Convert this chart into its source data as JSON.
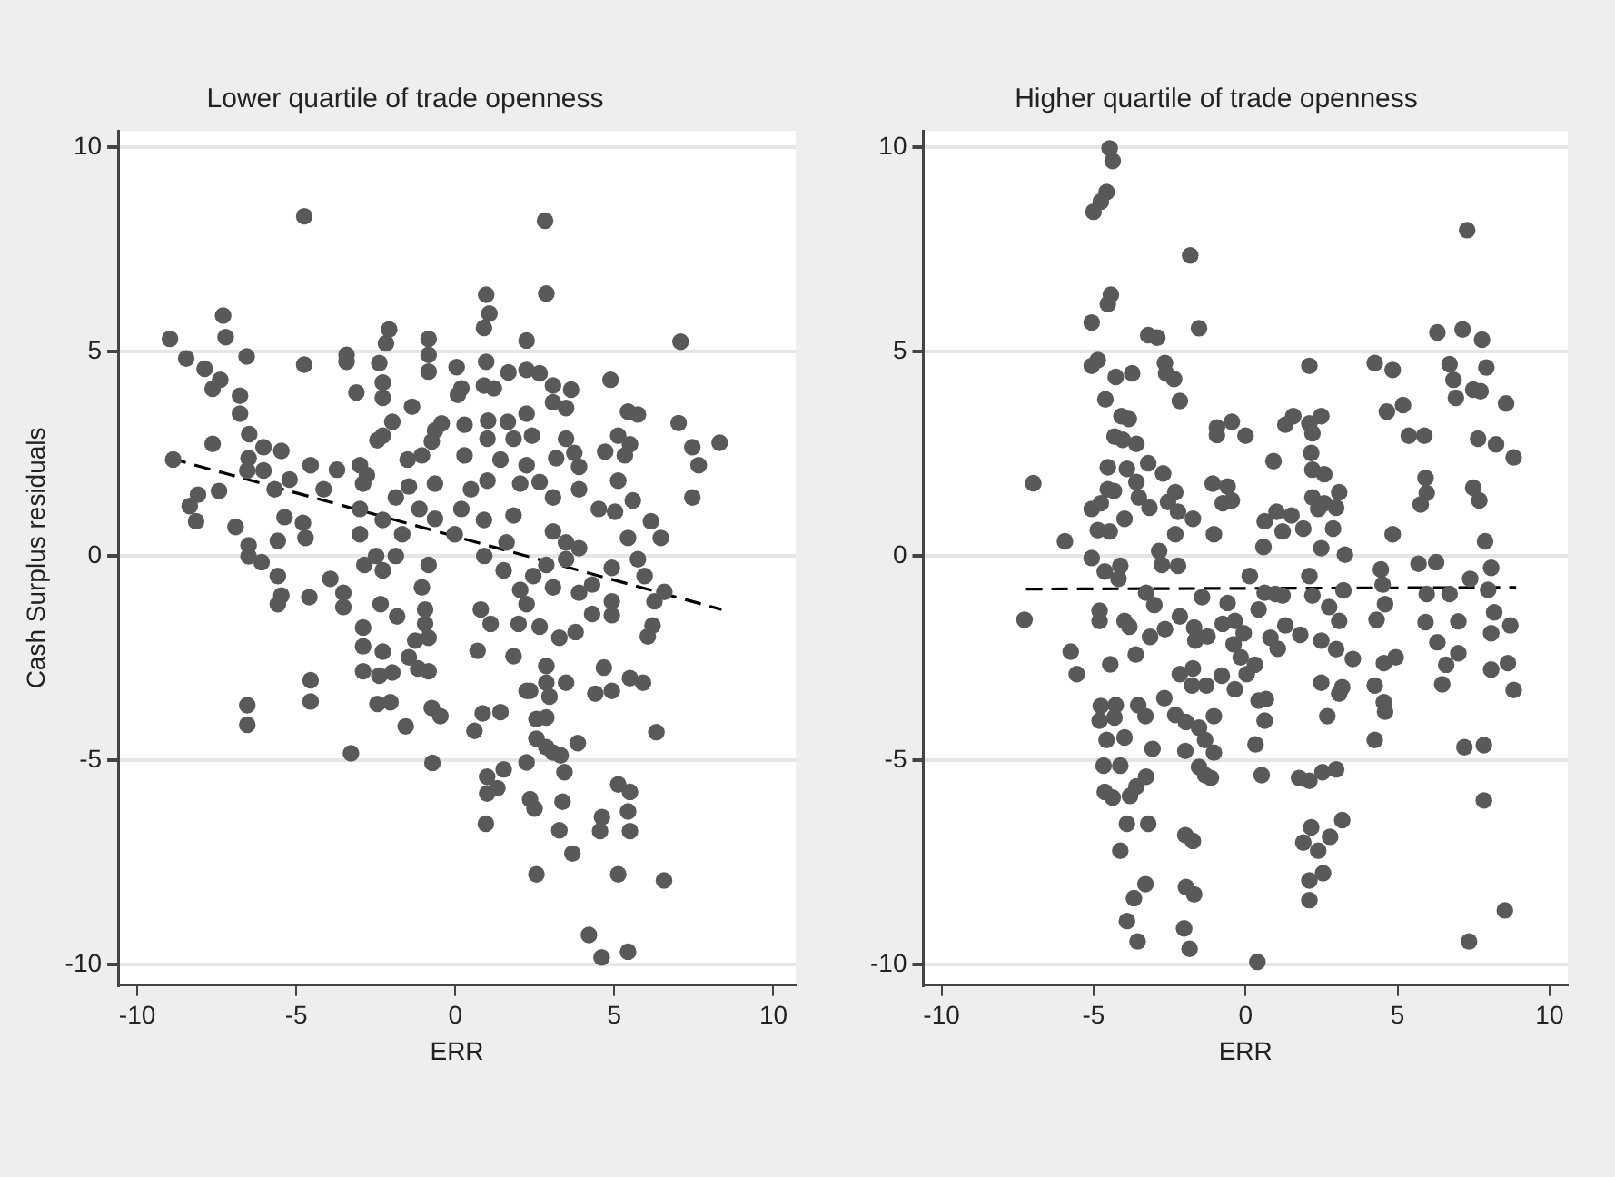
{
  "chart_data": [
    {
      "type": "scatter",
      "title": "Lower quartile of trade openness",
      "xlabel": "ERR",
      "ylabel": "Cash Surplus residuals",
      "xlim": [
        -10.6,
        10.7
      ],
      "ylim": [
        -10.5,
        10.4
      ],
      "xticks": [
        -10,
        -5,
        0,
        5,
        10
      ],
      "yticks": [
        -10,
        -5,
        0,
        5,
        10
      ],
      "grid": "y",
      "series": [
        {
          "type": "scatter",
          "color": "#595959",
          "marker": "circle",
          "x": [
            -4.75,
            2.82,
            0.97,
            2.86,
            1.07,
            0.9,
            -7.3,
            -8.97,
            -7.22,
            7.08,
            2.24,
            -2.08,
            -2.18,
            -0.84,
            -8.46,
            -7.88,
            -6.56,
            -4.75,
            -3.42,
            -3.42,
            -2.39,
            -0.84,
            -0.84,
            0.04,
            0.97,
            1.67,
            2.24,
            2.65,
            4.88,
            -7.39,
            -7.63,
            -6.77,
            -6.77,
            -3.11,
            -2.28,
            -2.28,
            -1.36,
            0.08,
            0.19,
            0.9,
            1.21,
            3.07,
            3.64,
            3.07,
            3.48,
            2.24,
            1.03,
            1.65,
            0.29,
            -0.43,
            -1.98,
            5.43,
            5.74,
            7.02,
            -6.48,
            -7.63,
            -6.03,
            -5.47,
            -2.45,
            -2.28,
            -0.64,
            -0.74,
            1.01,
            1.83,
            2.41,
            3.48,
            3.74,
            4.71,
            5.12,
            5.49,
            8.31,
            7.45,
            -8.87,
            -6.5,
            -6.54,
            -6.03,
            -4.55,
            -3.72,
            -3.0,
            -2.78,
            -1.5,
            -1.05,
            0.29,
            1.42,
            2.24,
            3.17,
            3.89,
            5.33,
            7.65,
            -8.09,
            -7.43,
            -8.35,
            -5.68,
            -5.21,
            -4.14,
            -2.9,
            -1.87,
            -1.46,
            -0.64,
            0.49,
            1.01,
            2.04,
            2.65,
            3.07,
            3.89,
            4.51,
            5.12,
            5.58,
            7.45,
            -8.15,
            -6.91,
            -5.37,
            -4.79,
            -4.71,
            -5.58,
            -6.5,
            -3.0,
            -2.28,
            -1.13,
            -0.64,
            0.19,
            0.9,
            1.83,
            3.07,
            3.48,
            3.89,
            5.02,
            5.43,
            6.15,
            6.46,
            -3.0,
            -1.67,
            -0.02,
            1.61,
            -6.5,
            -6.09,
            -5.58,
            -5.47,
            -5.58,
            -4.59,
            -3.93,
            -3.52,
            -3.52,
            -2.86,
            -2.28,
            -2.49,
            -1.87,
            -0.84,
            -1.05,
            -2.35,
            -1.83,
            -0.95,
            -2.9,
            -2.9,
            -2.28,
            -0.95,
            -1.26,
            -0.84,
            -1.46,
            -2.9,
            -2.39,
            -1.98,
            -1.17,
            -0.84,
            0.8,
            1.11,
            0.7,
            1.83,
            1.99,
            0.91,
            1.52,
            2.04,
            2.24,
            2.45,
            2.86,
            3.07,
            3.48,
            3.89,
            4.3,
            2.65,
            3.27,
            3.78,
            2.86,
            3.48,
            2.86,
            2.35,
            2.96,
            4.3,
            4.92,
            4.92,
            4.92,
            5.74,
            5.95,
            6.26,
            6.57,
            6.2,
            6.05,
            4.67,
            4.4,
            4.92,
            5.49,
            5.9,
            -6.54,
            -6.54,
            -4.55,
            -4.55,
            -3.28,
            -2.45,
            -2.04,
            -1.56,
            -0.74,
            -0.47,
            -0.72,
            0.6,
            0.86,
            1.42,
            2.24,
            2.55,
            2.86,
            2.55,
            2.86,
            3.07,
            3.31,
            3.85,
            2.24,
            3.43,
            1.0,
            1.52,
            1.0,
            1.32,
            0.96,
            2.35,
            2.49,
            3.37,
            3.27,
            3.68,
            4.61,
            4.55,
            5.12,
            5.49,
            5.43,
            5.49,
            6.32,
            2.55,
            5.12,
            6.56,
            4.2,
            4.6,
            5.43
          ],
          "values": [
            8.31,
            8.2,
            6.39,
            6.42,
            5.93,
            5.58,
            5.88,
            5.31,
            5.35,
            5.24,
            5.27,
            5.54,
            5.2,
            5.31,
            4.83,
            4.58,
            4.88,
            4.68,
            4.92,
            4.75,
            4.72,
            4.92,
            4.51,
            4.62,
            4.75,
            4.49,
            4.55,
            4.47,
            4.31,
            4.31,
            4.09,
            3.92,
            3.48,
            4.0,
            4.24,
            3.87,
            3.65,
            3.94,
            4.1,
            4.17,
            4.1,
            4.17,
            4.07,
            3.76,
            3.62,
            3.48,
            3.31,
            3.28,
            3.21,
            3.24,
            3.28,
            3.53,
            3.46,
            3.25,
            2.98,
            2.74,
            2.66,
            2.57,
            2.83,
            2.94,
            3.07,
            2.8,
            2.87,
            2.87,
            2.94,
            2.87,
            2.52,
            2.55,
            2.94,
            2.73,
            2.77,
            2.66,
            2.36,
            2.39,
            2.09,
            2.09,
            2.22,
            2.11,
            2.22,
            1.98,
            2.36,
            2.46,
            2.46,
            2.36,
            2.22,
            2.39,
            2.18,
            2.46,
            2.22,
            1.5,
            1.59,
            1.22,
            1.63,
            1.87,
            1.63,
            1.77,
            1.43,
            1.7,
            1.77,
            1.63,
            1.84,
            1.77,
            1.81,
            1.43,
            1.63,
            1.15,
            1.84,
            1.36,
            1.43,
            0.85,
            0.71,
            0.95,
            0.81,
            0.44,
            0.37,
            0.26,
            1.15,
            0.88,
            1.15,
            0.91,
            1.15,
            0.88,
            0.99,
            0.6,
            0.33,
            0.19,
            1.08,
            0.44,
            0.85,
            0.44,
            0.53,
            0.53,
            0.53,
            0.33,
            -0.01,
            -0.15,
            -0.49,
            -0.97,
            -1.18,
            -1.01,
            -0.56,
            -0.9,
            -1.25,
            -0.22,
            -0.35,
            0.0,
            0.0,
            -0.22,
            -0.77,
            -1.18,
            -1.48,
            -1.31,
            -1.75,
            -2.21,
            -2.34,
            -1.66,
            -2.07,
            -2.0,
            -2.48,
            -2.82,
            -2.93,
            -2.85,
            -2.75,
            -2.82,
            -1.31,
            -1.66,
            -2.32,
            -2.45,
            -1.66,
            0.0,
            -0.35,
            -0.83,
            -1.18,
            -0.49,
            -0.22,
            -0.77,
            -0.08,
            -0.9,
            -0.7,
            -1.73,
            -2.0,
            -1.86,
            -2.69,
            -3.1,
            -3.1,
            -3.3,
            -3.44,
            -1.42,
            -1.11,
            -1.45,
            -0.29,
            -0.08,
            -0.49,
            -1.11,
            -0.88,
            -1.7,
            -1.97,
            -2.73,
            -3.37,
            -3.3,
            -2.99,
            -3.1,
            -3.65,
            -4.13,
            -3.04,
            -3.56,
            -4.83,
            -3.62,
            -3.58,
            -4.17,
            -3.72,
            -3.92,
            -5.06,
            -4.28,
            -3.85,
            -3.82,
            -3.3,
            -3.99,
            -3.95,
            -4.47,
            -4.68,
            -4.81,
            -4.88,
            -4.58,
            -5.05,
            -5.29,
            -5.4,
            -5.22,
            -5.81,
            -5.68,
            -6.55,
            -5.95,
            -6.18,
            -6.01,
            -6.71,
            -7.28,
            -6.39,
            -6.73,
            -5.59,
            -5.77,
            -6.25,
            -6.73,
            -4.31,
            -7.79,
            -7.79,
            -7.94,
            -9.27,
            -9.82,
            -9.68
          ]
        },
        {
          "type": "line",
          "color": "#000000",
          "line_style": "dashed",
          "marker": "none",
          "x": [
            -8.97,
            8.37
          ],
          "values": [
            2.39,
            -1.31
          ]
        }
      ]
    },
    {
      "type": "scatter",
      "title": "Higher quartile of trade openness",
      "xlabel": "ERR",
      "xlim": [
        -10.6,
        10.6
      ],
      "ylim": [
        -10.5,
        10.4
      ],
      "xticks": [
        -10,
        -5,
        0,
        5,
        10
      ],
      "yticks": [
        -10,
        -5,
        0,
        5,
        10
      ],
      "grid": "y",
      "series": [
        {
          "type": "scatter",
          "color": "#595959",
          "marker": "circle",
          "x": [
            -4.47,
            -4.37,
            -4.57,
            -4.76,
            -5.0,
            7.29,
            -1.82,
            -4.43,
            -4.53,
            -5.06,
            -1.53,
            -3.2,
            -2.9,
            6.31,
            7.14,
            7.78,
            -5.06,
            -4.86,
            -4.27,
            -3.73,
            -2.65,
            -2.61,
            -2.35,
            -2.16,
            -4.61,
            2.1,
            4.25,
            4.84,
            6.71,
            7.92,
            6.84,
            6.92,
            7.49,
            7.73,
            8.57,
            -4.08,
            -3.84,
            -0.94,
            -0.45,
            0.0,
            -0.94,
            1.31,
            1.57,
            2.1,
            2.49,
            2.2,
            4.65,
            5.18,
            5.37,
            5.88,
            7.65,
            8.24,
            8.82,
            -4.31,
            -4.04,
            -3.59,
            -6.98,
            -4.53,
            -3.9,
            -3.2,
            -2.71,
            -3.59,
            -4.53,
            -4.33,
            -3.51,
            -2.55,
            -2.31,
            -5.06,
            -4.76,
            -3.16,
            -2.22,
            -1.73,
            -3.98,
            -4.86,
            -4.47,
            -2.31,
            -5.94,
            0.92,
            2.16,
            2.2,
            2.59,
            -1.08,
            -0.59,
            -0.75,
            -0.45,
            1.02,
            1.51,
            0.63,
            1.22,
            1.9,
            2.39,
            2.59,
            3.08,
            2.98,
            2.2,
            2.88,
            0.59,
            -1.04,
            2.49,
            3.27,
            4.84,
            5.92,
            5.96,
            5.76,
            7.49,
            7.69,
            7.88,
            -2.84,
            -5.06,
            -4.63,
            -4.12,
            -4.18,
            -2.75,
            -2.22,
            -3.27,
            -3.0,
            -4.8,
            -4.8,
            -3.98,
            -3.82,
            -3.14,
            -2.65,
            -2.16,
            -1.69,
            -1.65,
            -1.25,
            -1.43,
            -0.59,
            -0.75,
            -0.35,
            -0.06,
            -0.39,
            -0.16,
            0.14,
            0.43,
            0.63,
            0.98,
            1.22,
            0.82,
            1.06,
            1.31,
            1.8,
            2.1,
            2.2,
            2.75,
            3.08,
            2.49,
            2.98,
            3.22,
            3.53,
            4.45,
            4.51,
            4.59,
            4.31,
            4.55,
            4.94,
            5.69,
            6.27,
            5.96,
            5.92,
            6.71,
            6.31,
            6.6,
            7.0,
            7.0,
            7.39,
            7.98,
            8.08,
            8.18,
            8.08,
            8.08,
            8.71,
            8.63,
            8.82,
            6.47,
            -5.75,
            -5.55,
            -4.45,
            -3.61,
            -4.76,
            -4.27,
            -3.53,
            -4.8,
            -4.31,
            -3.29,
            -4.57,
            -3.98,
            -3.06,
            -2.67,
            -2.31,
            -1.96,
            -1.53,
            -1.33,
            -1.98,
            -2.16,
            -1.73,
            -1.76,
            -1.29,
            -1.04,
            -1.04,
            -0.78,
            -0.35,
            0.04,
            0.31,
            0.43,
            0.67,
            0.63,
            0.33,
            0.53,
            -1.33,
            -1.53,
            -1.14,
            2.49,
            2.69,
            3.08,
            3.18,
            4.25,
            4.55,
            4.59,
            4.25,
            1.76,
            2.1,
            2.53,
            2.98,
            -4.67,
            -4.12,
            -4.63,
            -4.37,
            -3.59,
            -3.27,
            -3.8,
            -3.9,
            -3.2,
            -4.12,
            -1.98,
            -1.73,
            2.16,
            1.9,
            2.39,
            2.78,
            3.18,
            -3.29,
            -3.67,
            -3.9,
            -3.55,
            -1.96,
            -1.69,
            -2.02,
            -1.84,
            0.39,
            2.1,
            2.55,
            2.1,
            7.2,
            7.84,
            7.84,
            7.35,
            8.53,
            -7.27
          ],
          "values": [
            9.97,
            9.66,
            8.9,
            8.67,
            8.42,
            7.97,
            7.35,
            6.39,
            6.16,
            5.71,
            5.57,
            5.4,
            5.34,
            5.47,
            5.54,
            5.29,
            4.65,
            4.79,
            4.38,
            4.47,
            4.72,
            4.47,
            4.33,
            3.79,
            3.83,
            4.65,
            4.72,
            4.55,
            4.69,
            4.61,
            4.31,
            3.87,
            4.07,
            4.03,
            3.73,
            3.42,
            3.35,
            3.14,
            3.28,
            2.94,
            2.96,
            3.21,
            3.42,
            3.24,
            3.42,
            3.0,
            3.53,
            3.69,
            2.94,
            2.94,
            2.87,
            2.73,
            2.41,
            2.92,
            2.84,
            2.74,
            1.78,
            2.17,
            2.13,
            2.27,
            2.02,
            1.81,
            1.63,
            1.59,
            1.43,
            1.32,
            1.56,
            1.15,
            1.29,
            1.18,
            1.08,
            0.91,
            0.91,
            0.63,
            0.6,
            0.53,
            0.36,
            2.32,
            2.52,
            2.11,
            2.0,
            1.77,
            1.7,
            1.29,
            1.36,
            1.08,
            0.99,
            0.85,
            0.6,
            0.67,
            1.15,
            1.29,
            1.56,
            1.18,
            1.43,
            0.67,
            0.22,
            0.53,
            0.19,
            0.03,
            0.53,
            1.91,
            1.54,
            1.26,
            1.67,
            1.36,
            0.36,
            0.12,
            -0.05,
            -0.38,
            -0.24,
            -0.56,
            -0.22,
            -0.24,
            -0.9,
            -1.2,
            -1.34,
            -1.59,
            -1.59,
            -1.73,
            -1.98,
            -1.79,
            -1.48,
            -1.75,
            -2.07,
            -1.97,
            -1.01,
            -1.15,
            -1.66,
            -1.59,
            -1.89,
            -2.16,
            -2.48,
            -0.49,
            -1.31,
            -0.9,
            -0.93,
            -0.97,
            -2.0,
            -2.27,
            -1.7,
            -1.93,
            -0.49,
            -0.97,
            -1.25,
            -1.59,
            -2.07,
            -2.28,
            -0.84,
            -2.52,
            -0.33,
            -0.7,
            -1.18,
            -1.56,
            -2.62,
            -2.48,
            -0.19,
            -0.15,
            -0.93,
            -1.62,
            -0.93,
            -2.11,
            -2.66,
            -1.6,
            -2.38,
            -0.56,
            -0.83,
            -0.29,
            -1.38,
            -1.89,
            -2.78,
            -1.7,
            -2.62,
            -3.28,
            -3.14,
            -2.34,
            -2.89,
            -2.65,
            -2.41,
            -3.67,
            -3.65,
            -3.65,
            -4.03,
            -3.95,
            -3.92,
            -4.5,
            -4.44,
            -4.72,
            -3.48,
            -3.89,
            -4.06,
            -4.2,
            -4.5,
            -4.77,
            -2.89,
            -2.75,
            -3.17,
            -3.17,
            -3.92,
            -4.81,
            -2.93,
            -3.26,
            -2.89,
            -2.66,
            -3.54,
            -3.5,
            -4.03,
            -4.61,
            -5.36,
            -5.36,
            -5.16,
            -5.43,
            -3.1,
            -3.92,
            -3.37,
            -3.21,
            -3.17,
            -3.58,
            -3.81,
            -4.5,
            -5.43,
            -5.5,
            -5.29,
            -5.22,
            -5.13,
            -5.13,
            -5.77,
            -5.91,
            -5.64,
            -5.4,
            -5.87,
            -6.55,
            -6.55,
            -7.21,
            -6.83,
            -6.97,
            -6.64,
            -7.01,
            -7.21,
            -6.87,
            -6.46,
            -8.03,
            -8.37,
            -8.93,
            -9.43,
            -8.1,
            -8.28,
            -9.11,
            -9.61,
            -9.93,
            -7.94,
            -7.76,
            -8.42,
            -4.68,
            -4.63,
            -5.98,
            -9.43,
            -8.67,
            -1.56
          ]
        },
        {
          "type": "line",
          "color": "#000000",
          "line_style": "dashed",
          "marker": "none",
          "x": [
            -7.22,
            8.9
          ],
          "values": [
            -0.81,
            -0.77
          ]
        }
      ]
    }
  ]
}
